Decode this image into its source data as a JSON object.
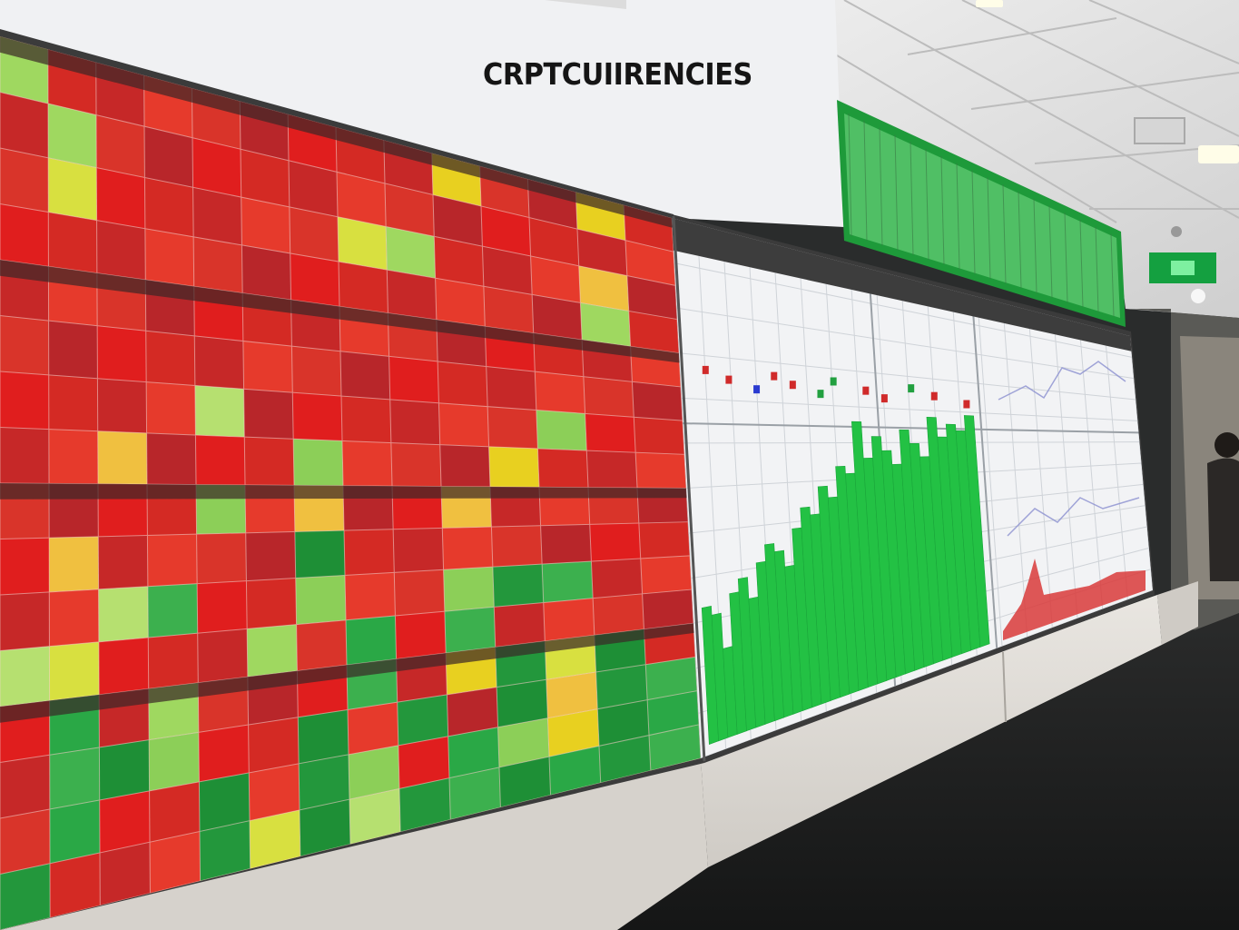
{
  "scene": {
    "header_title": "CRPTCUIIRENCIES",
    "colors": {
      "heatmap_red": "#e01e1e",
      "heatmap_green": "#1e9a3a",
      "heatmap_yellow": "#e8d020",
      "chart_bar_green": "#23c144",
      "chart_area_red": "#d93a3a",
      "screen_white": "#f2f3f5",
      "exit_sign_green": "#14a040",
      "ceiling": "#e6e6e6",
      "floor": "#1b1c1c"
    },
    "elements": {
      "heatmap_wall": "heatmap-panel",
      "chart_panel": "bar-chart-panel",
      "ceiling_light": "light-panel-icon",
      "exit_sign": "exit-sign-icon",
      "person": "person-silhouette"
    }
  }
}
